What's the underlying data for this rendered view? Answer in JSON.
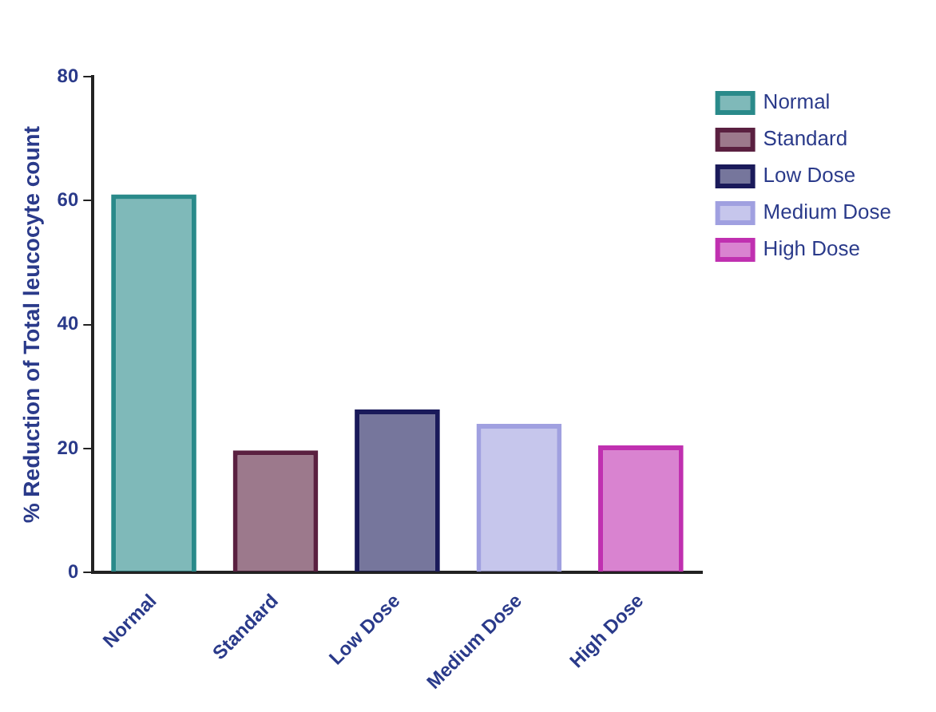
{
  "chart_data": {
    "type": "bar",
    "ylabel": "% Reduction of Total leucocyte count",
    "categories": [
      "Normal",
      "Standard",
      "Low Dose",
      "Medium Dose",
      "High Dose"
    ],
    "series": [
      {
        "name": "Normal",
        "color": "#2a8a8a",
        "values": [
          61,
          null,
          null,
          null,
          null
        ]
      },
      {
        "name": "Standard",
        "color": "#5a2040",
        "values": [
          null,
          19.7,
          null,
          null,
          null
        ]
      },
      {
        "name": "Low Dose",
        "color": "#1a1a5a",
        "values": [
          null,
          null,
          26.3,
          null,
          null
        ]
      },
      {
        "name": "Medium Dose",
        "color": "#a0a0e0",
        "values": [
          null,
          null,
          null,
          24,
          null
        ]
      },
      {
        "name": "High Dose",
        "color": "#c030b0",
        "values": [
          null,
          null,
          null,
          null,
          20.5
        ]
      }
    ],
    "ylim": [
      0,
      80
    ],
    "yticks": [
      0,
      20,
      40,
      60,
      80
    ],
    "grid": false,
    "legend": "top right"
  }
}
